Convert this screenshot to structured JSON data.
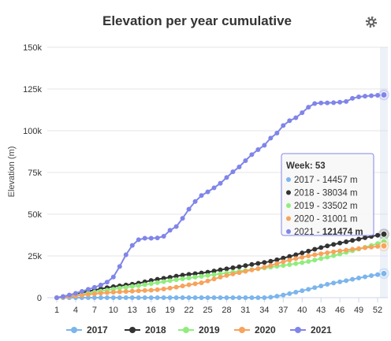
{
  "chart_data": {
    "type": "line",
    "title": "Elevation per year cumulative",
    "ylabel": "Elevation (m)",
    "xlabel": "",
    "x": [
      1,
      2,
      3,
      4,
      5,
      6,
      7,
      8,
      9,
      10,
      11,
      12,
      13,
      14,
      15,
      16,
      17,
      18,
      19,
      20,
      21,
      22,
      23,
      24,
      25,
      26,
      27,
      28,
      29,
      30,
      31,
      32,
      33,
      34,
      35,
      36,
      37,
      38,
      39,
      40,
      41,
      42,
      43,
      44,
      45,
      46,
      47,
      48,
      49,
      50,
      51,
      52,
      53
    ],
    "x_ticks": [
      "1",
      "4",
      "7",
      "10",
      "13",
      "16",
      "19",
      "22",
      "25",
      "28",
      "31",
      "34",
      "37",
      "40",
      "43",
      "46",
      "49",
      "52"
    ],
    "y_ticks": [
      "0",
      "25k",
      "50k",
      "75k",
      "100k",
      "125k",
      "150k"
    ],
    "ylim": [
      0,
      150000
    ],
    "grid": true,
    "legend_position": "bottom",
    "series": [
      {
        "name": "2017",
        "color": "#7cb5ec",
        "values": [
          0,
          0,
          0,
          0,
          0,
          0,
          0,
          0,
          0,
          0,
          0,
          0,
          0,
          0,
          0,
          0,
          0,
          0,
          0,
          0,
          0,
          0,
          0,
          0,
          0,
          0,
          0,
          0,
          0,
          0,
          0,
          0,
          0,
          0,
          300,
          900,
          1600,
          2400,
          3300,
          4200,
          5000,
          6000,
          7000,
          8000,
          8800,
          9500,
          10200,
          11000,
          11800,
          12500,
          13200,
          13800,
          14457
        ]
      },
      {
        "name": "2018",
        "color": "#333333",
        "values": [
          0,
          600,
          1300,
          2100,
          3000,
          3800,
          4600,
          5300,
          6000,
          6600,
          7100,
          7600,
          8100,
          8700,
          9500,
          10300,
          11000,
          11600,
          12200,
          12900,
          13500,
          14000,
          14400,
          14800,
          15300,
          16000,
          16700,
          17300,
          17900,
          18500,
          19200,
          19900,
          20500,
          21100,
          21800,
          22700,
          23700,
          24700,
          25700,
          26800,
          27900,
          29000,
          30000,
          31000,
          31900,
          32700,
          33500,
          34300,
          35100,
          35900,
          36700,
          37400,
          38034
        ]
      },
      {
        "name": "2019",
        "color": "#90ed7d",
        "values": [
          0,
          400,
          900,
          1500,
          2100,
          2700,
          3300,
          3900,
          4500,
          5100,
          5700,
          6200,
          6700,
          7200,
          7800,
          8400,
          9000,
          9600,
          10200,
          10800,
          11300,
          11800,
          12300,
          12800,
          13300,
          13800,
          14300,
          14800,
          15300,
          15800,
          16300,
          16800,
          17300,
          17800,
          18300,
          18800,
          19300,
          19800,
          20400,
          21000,
          21700,
          22500,
          23400,
          24300,
          25200,
          26100,
          27100,
          28100,
          29100,
          30200,
          31300,
          32400,
          33502
        ]
      },
      {
        "name": "2020",
        "color": "#f7a35c",
        "values": [
          0,
          300,
          700,
          1100,
          1500,
          1900,
          2300,
          2700,
          3000,
          3300,
          3500,
          3700,
          3900,
          4100,
          4300,
          4500,
          4800,
          5200,
          5700,
          6300,
          7000,
          7700,
          8300,
          8900,
          10000,
          11200,
          12300,
          13300,
          14200,
          15000,
          15800,
          16600,
          17400,
          18300,
          19300,
          20400,
          21500,
          22500,
          23400,
          24200,
          25000,
          25700,
          26300,
          26900,
          27500,
          28000,
          28500,
          29000,
          29400,
          29900,
          30300,
          30700,
          31001
        ]
      },
      {
        "name": "2021",
        "color": "#8085e9",
        "values": [
          0,
          700,
          1600,
          2600,
          3800,
          5000,
          6200,
          7600,
          9300,
          12400,
          18700,
          25700,
          31300,
          34700,
          35600,
          35600,
          35800,
          36800,
          40400,
          42600,
          47500,
          53000,
          57600,
          61200,
          63400,
          65800,
          68500,
          72000,
          75400,
          78300,
          82100,
          85700,
          88700,
          91300,
          95600,
          98600,
          103100,
          106000,
          107800,
          110800,
          114100,
          116300,
          116600,
          116700,
          116800,
          117100,
          117500,
          119400,
          120300,
          120700,
          121000,
          121200,
          121474
        ]
      }
    ],
    "tooltip": {
      "header": "Week: 53",
      "rows": [
        {
          "label": "2017 - ",
          "value": "14457 m",
          "color": "#7cb5ec",
          "bold": false
        },
        {
          "label": "2018 - ",
          "value": "38034 m",
          "color": "#333333",
          "bold": false
        },
        {
          "label": "2019 - ",
          "value": "33502 m",
          "color": "#90ed7d",
          "bold": false
        },
        {
          "label": "2020 - ",
          "value": "31001 m",
          "color": "#f7a35c",
          "bold": false
        },
        {
          "label": "2021 - ",
          "value": "121474 m",
          "color": "#8085e9",
          "bold": true
        }
      ]
    }
  },
  "menu_icon": "gear-icon"
}
